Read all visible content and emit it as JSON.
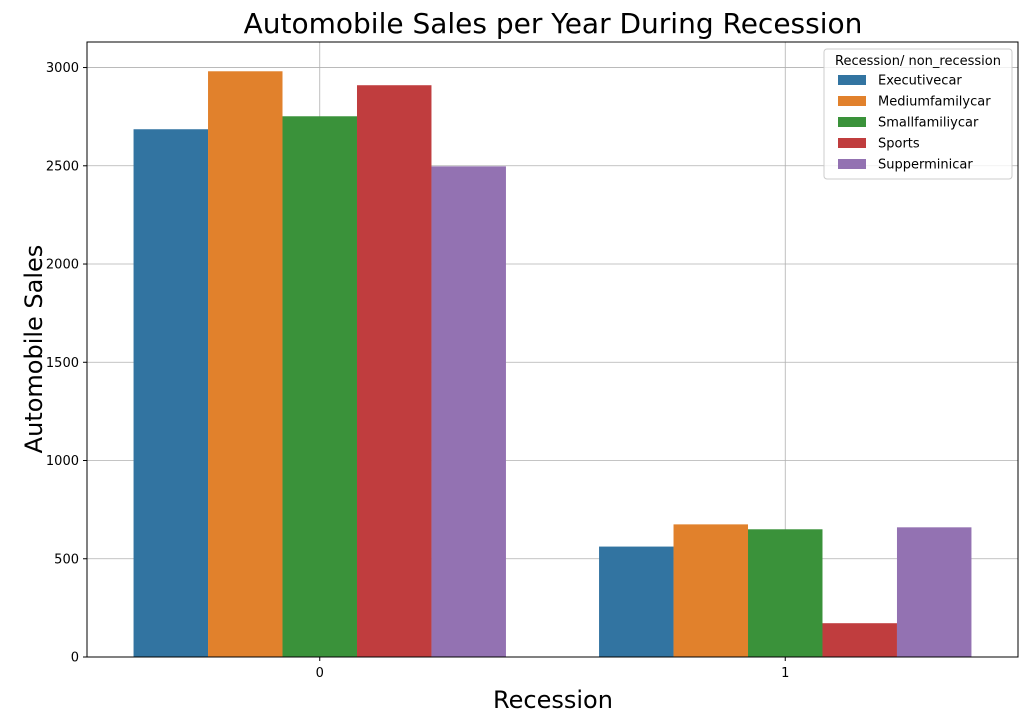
{
  "chart_data": {
    "type": "bar",
    "title": "Automobile Sales per Year During Recession",
    "xlabel": "Recession",
    "ylabel": "Automobile Sales",
    "categories": [
      "0",
      "1"
    ],
    "ylim": [
      0,
      3130
    ],
    "yticks": [
      0,
      500,
      1000,
      1500,
      2000,
      2500,
      3000
    ],
    "grid": true,
    "legend": {
      "title": "Recession/ non_recession",
      "position": "top-right"
    },
    "series": [
      {
        "name": "Executivecar",
        "color": "#3274a1",
        "values": [
          2686,
          562
        ]
      },
      {
        "name": "Mediumfamilycar",
        "color": "#e1812c",
        "values": [
          2981,
          675
        ]
      },
      {
        "name": "Smallfamiliycar",
        "color": "#3a923a",
        "values": [
          2752,
          650
        ]
      },
      {
        "name": "Sports",
        "color": "#c03d3e",
        "values": [
          2910,
          172
        ]
      },
      {
        "name": "Supperminicar",
        "color": "#9372b2",
        "values": [
          2497,
          660
        ]
      }
    ]
  }
}
